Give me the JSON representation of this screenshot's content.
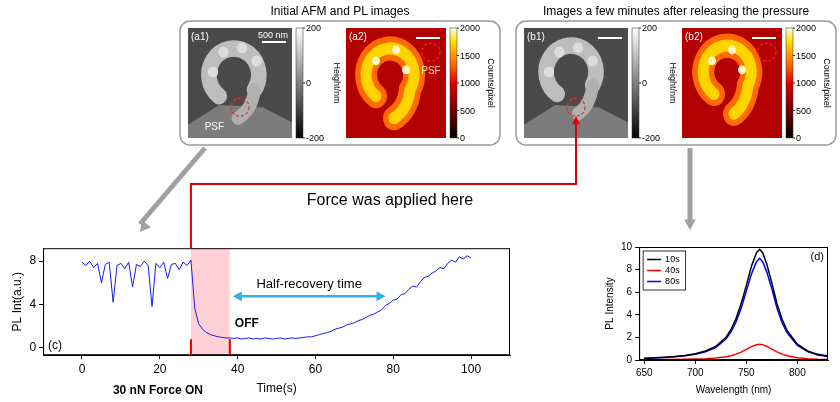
{
  "chart_data": [
    {
      "type": "line",
      "panel_label": "(c)",
      "x_label": "Time(s)",
      "y_label": "PL Int(a.u.)",
      "x": [
        0,
        1,
        2,
        3,
        4,
        5,
        6,
        7,
        8,
        9,
        10,
        11,
        12,
        13,
        14,
        15,
        16,
        17,
        18,
        19,
        20,
        21,
        22,
        23,
        24,
        25,
        26,
        27,
        28,
        29,
        30,
        31,
        32,
        33,
        34,
        35,
        36,
        37,
        38,
        39,
        40,
        41,
        42,
        43,
        44,
        45,
        46,
        47,
        48,
        49,
        50,
        51,
        52,
        53,
        54,
        55,
        56,
        57,
        58,
        59,
        60,
        61,
        62,
        63,
        64,
        65,
        66,
        67,
        68,
        69,
        70,
        71,
        72,
        73,
        74,
        75,
        76,
        77,
        78,
        79,
        80,
        81,
        82,
        83,
        84,
        85,
        86,
        87,
        88,
        89,
        90,
        91,
        92,
        93,
        94,
        95,
        96,
        97,
        98,
        99,
        100
      ],
      "values": [
        7.9,
        7.6,
        8.0,
        7.4,
        7.8,
        6.0,
        7.7,
        7.9,
        4.2,
        7.6,
        7.8,
        7.3,
        7.9,
        5.6,
        7.7,
        7.5,
        8.0,
        7.6,
        3.8,
        7.8,
        7.4,
        7.9,
        6.4,
        7.7,
        7.8,
        7.2,
        7.9,
        7.6,
        8.1,
        3.6,
        2.2,
        1.7,
        1.4,
        1.2,
        1.1,
        1.0,
        0.95,
        0.9,
        0.9,
        0.85,
        0.9,
        0.8,
        0.85,
        0.9,
        0.8,
        0.85,
        0.8,
        0.9,
        0.85,
        0.8,
        0.85,
        0.9,
        0.8,
        0.85,
        0.9,
        0.85,
        0.9,
        0.95,
        1.0,
        1.0,
        1.1,
        1.2,
        1.3,
        1.4,
        1.5,
        1.7,
        1.8,
        1.9,
        2.1,
        2.2,
        2.3,
        2.5,
        2.6,
        2.8,
        3.0,
        3.1,
        3.3,
        3.5,
        3.9,
        4.1,
        4.4,
        4.5,
        4.9,
        5.0,
        5.4,
        5.7,
        5.6,
        6.1,
        6.5,
        6.6,
        6.9,
        7.1,
        7.4,
        7.3,
        7.8,
        8.1,
        7.9,
        8.4,
        8.2,
        8.5,
        8.3
      ],
      "color": "#1a1aee",
      "marker": "none",
      "line_style": "solid",
      "xlim": [
        -10,
        110
      ],
      "xticks": [
        0,
        20,
        40,
        60,
        80,
        100
      ],
      "ylim": [
        -0.7,
        9.2
      ],
      "yticks": [
        0,
        4,
        8
      ],
      "grid": false,
      "shaded_x": [
        28,
        38
      ],
      "markers": [
        {
          "x": 28,
          "label": "30 nN Force ON"
        },
        {
          "x": 38,
          "label": "OFF"
        }
      ],
      "span": {
        "from": 38,
        "to": 78,
        "label": "Half-recovery time"
      }
    },
    {
      "type": "line",
      "panel_label": "(d)",
      "x_label": "Wavelength (nm)",
      "y_label": "PL Intensity",
      "x": [
        650,
        660,
        670,
        680,
        690,
        700,
        710,
        720,
        730,
        735,
        740,
        745,
        750,
        755,
        760,
        763,
        766,
        770,
        775,
        780,
        785,
        790,
        800,
        810,
        820,
        830
      ],
      "series": [
        {
          "name": "10s",
          "color": "#000000",
          "values": [
            0.15,
            0.2,
            0.25,
            0.3,
            0.4,
            0.55,
            0.8,
            1.2,
            2.0,
            2.7,
            3.7,
            5.0,
            6.6,
            8.3,
            9.5,
            9.8,
            9.5,
            8.5,
            6.8,
            5.0,
            3.6,
            2.6,
            1.4,
            0.8,
            0.5,
            0.35
          ]
        },
        {
          "name": "40s",
          "color": "#ff0000",
          "values": [
            0.02,
            0.03,
            0.04,
            0.05,
            0.06,
            0.08,
            0.11,
            0.17,
            0.28,
            0.38,
            0.52,
            0.7,
            0.94,
            1.18,
            1.35,
            1.4,
            1.36,
            1.22,
            0.97,
            0.72,
            0.52,
            0.37,
            0.2,
            0.12,
            0.07,
            0.05
          ]
        },
        {
          "name": "80s",
          "color": "#0000ff",
          "values": [
            0.14,
            0.18,
            0.23,
            0.28,
            0.37,
            0.5,
            0.73,
            1.1,
            1.85,
            2.5,
            3.4,
            4.6,
            6.1,
            7.6,
            8.7,
            9.0,
            8.7,
            7.8,
            6.3,
            4.6,
            3.3,
            2.4,
            1.3,
            0.75,
            0.45,
            0.3
          ]
        }
      ],
      "xlim": [
        645,
        830
      ],
      "xticks": [
        650,
        700,
        750,
        800
      ],
      "ylim": [
        0,
        10
      ],
      "yticks": [
        0,
        2,
        4,
        6,
        8,
        10
      ],
      "grid": false,
      "legend": "upper left"
    }
  ],
  "figure": {
    "force_note": "Force was applied here",
    "groups": [
      {
        "title": "Initial AFM and PL images",
        "images": [
          {
            "label": "(a1)",
            "kind": "AFM",
            "scale_bar": "500 nm",
            "psf": "PSF",
            "colorbar": {
              "title": "Height/nm",
              "range": [
                -200,
                200
              ],
              "ticks": [
                -200,
                0,
                200
              ]
            }
          },
          {
            "label": "(a2)",
            "kind": "PL",
            "psf": "PSF",
            "colorbar": {
              "title": "Counts/pixel",
              "range": [
                0,
                2000
              ],
              "ticks": [
                0,
                500,
                1000,
                1500,
                2000
              ]
            }
          }
        ]
      },
      {
        "title": "Images a few minutes after releasing the pressure",
        "images": [
          {
            "label": "(b1)",
            "kind": "AFM",
            "colorbar": {
              "title": "Height/nm",
              "range": [
                -200,
                200
              ],
              "ticks": [
                -200,
                0,
                200
              ]
            }
          },
          {
            "label": "(b2)",
            "kind": "PL",
            "colorbar": {
              "title": "Counts/pixel",
              "range": [
                0,
                2000
              ],
              "ticks": [
                0,
                500,
                1000,
                1500,
                2000
              ]
            }
          }
        ]
      }
    ]
  }
}
